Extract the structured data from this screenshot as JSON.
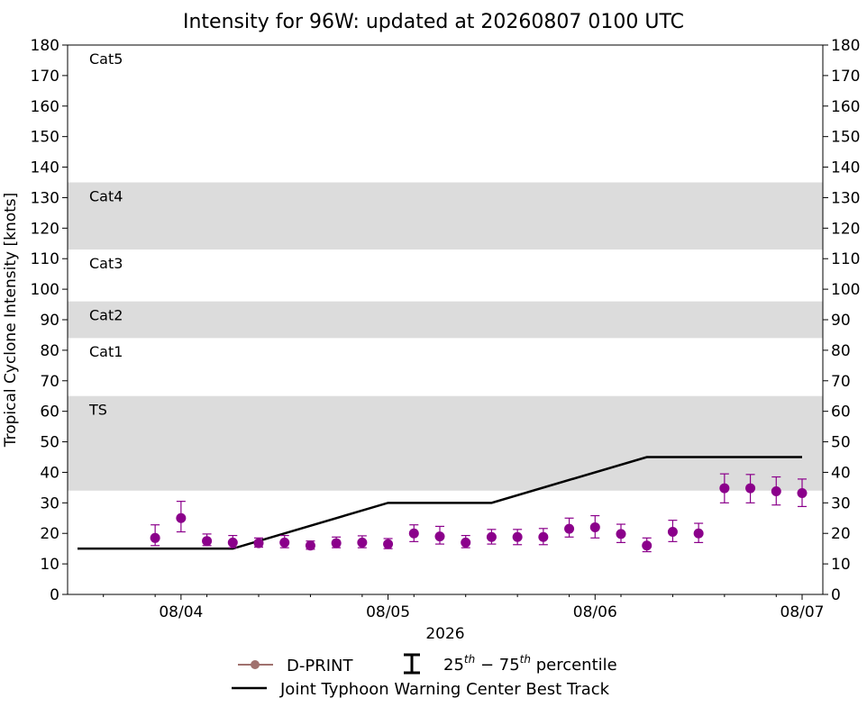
{
  "chart_data": {
    "type": "scatter",
    "title": "Intensity for 96W: updated at 20260807 0100 UTC",
    "ylabel": "Tropical Cyclone Intensity [knots]",
    "xlabel": "2026",
    "ylim": [
      0,
      180
    ],
    "yticks": [
      0,
      10,
      20,
      30,
      40,
      50,
      60,
      70,
      80,
      90,
      100,
      110,
      120,
      130,
      140,
      150,
      160,
      170,
      180
    ],
    "xlim": [
      3.5,
      7.05
    ],
    "xticks": [
      {
        "value": 4,
        "label": "08/04"
      },
      {
        "value": 5,
        "label": "08/05"
      },
      {
        "value": 6,
        "label": "08/06"
      },
      {
        "value": 7,
        "label": "08/07"
      }
    ],
    "minor_xticks": [
      3.625,
      3.875,
      4.125,
      4.375,
      4.625,
      4.875,
      5.125,
      5.375,
      5.625,
      5.875,
      6.125,
      6.375,
      6.625,
      6.875
    ],
    "x_unit": "days of August 2026",
    "category_bands": [
      {
        "label": "TS",
        "low": 34,
        "high": 65,
        "shaded": true
      },
      {
        "label": "Cat1",
        "low": 65,
        "high": 84,
        "shaded": false
      },
      {
        "label": "Cat2",
        "low": 84,
        "high": 96,
        "shaded": true
      },
      {
        "label": "Cat3",
        "low": 96,
        "high": 113,
        "shaded": false
      },
      {
        "label": "Cat4",
        "low": 113,
        "high": 135,
        "shaded": true
      },
      {
        "label": "Cat5",
        "low": 135,
        "high": 180,
        "shaded": false
      }
    ],
    "series": [
      {
        "name": "D-PRINT",
        "color": "#8b008b",
        "legend_color": "#a0716e",
        "x": [
          3.875,
          4.0,
          4.125,
          4.25,
          4.375,
          4.5,
          4.625,
          4.75,
          4.875,
          5.0,
          5.125,
          5.25,
          5.375,
          5.5,
          5.625,
          5.75,
          5.875,
          6.0,
          6.125,
          6.25,
          6.375,
          6.5,
          6.625,
          6.75,
          6.875,
          7.0
        ],
        "y": [
          18.5,
          25,
          17.5,
          17,
          16.8,
          17,
          16,
          16.8,
          17,
          16.5,
          20,
          19,
          17,
          18.8,
          18.8,
          18.8,
          21.5,
          22,
          19.8,
          16,
          20.5,
          20,
          34.8,
          34.8,
          33.8,
          33.2
        ],
        "p25": [
          16,
          20.5,
          16,
          15.3,
          15.5,
          15.3,
          14.8,
          15.3,
          15.3,
          15,
          17.3,
          16.5,
          15.3,
          16.5,
          16.3,
          16.3,
          18.8,
          18.5,
          17,
          14,
          17.3,
          17,
          30,
          30,
          29.3,
          28.8
        ],
        "p75": [
          22.8,
          30.5,
          19.8,
          19.3,
          18.5,
          19.3,
          17.5,
          18.8,
          19.2,
          18.3,
          22.8,
          22.3,
          19.3,
          21.3,
          21.3,
          21.6,
          25,
          25.8,
          23,
          18.5,
          24.3,
          23.3,
          39.5,
          39.3,
          38.5,
          37.8
        ]
      },
      {
        "name": "Joint Typhoon Warning Center Best Track",
        "color": "#000000",
        "x": [
          3.5,
          4.25,
          5.0,
          5.5,
          6.25,
          7.0
        ],
        "y": [
          15,
          15,
          30,
          30,
          45,
          45
        ]
      }
    ],
    "legend": {
      "placement": "bottom-center",
      "percentile_label": "25th − 75th percentile"
    }
  }
}
